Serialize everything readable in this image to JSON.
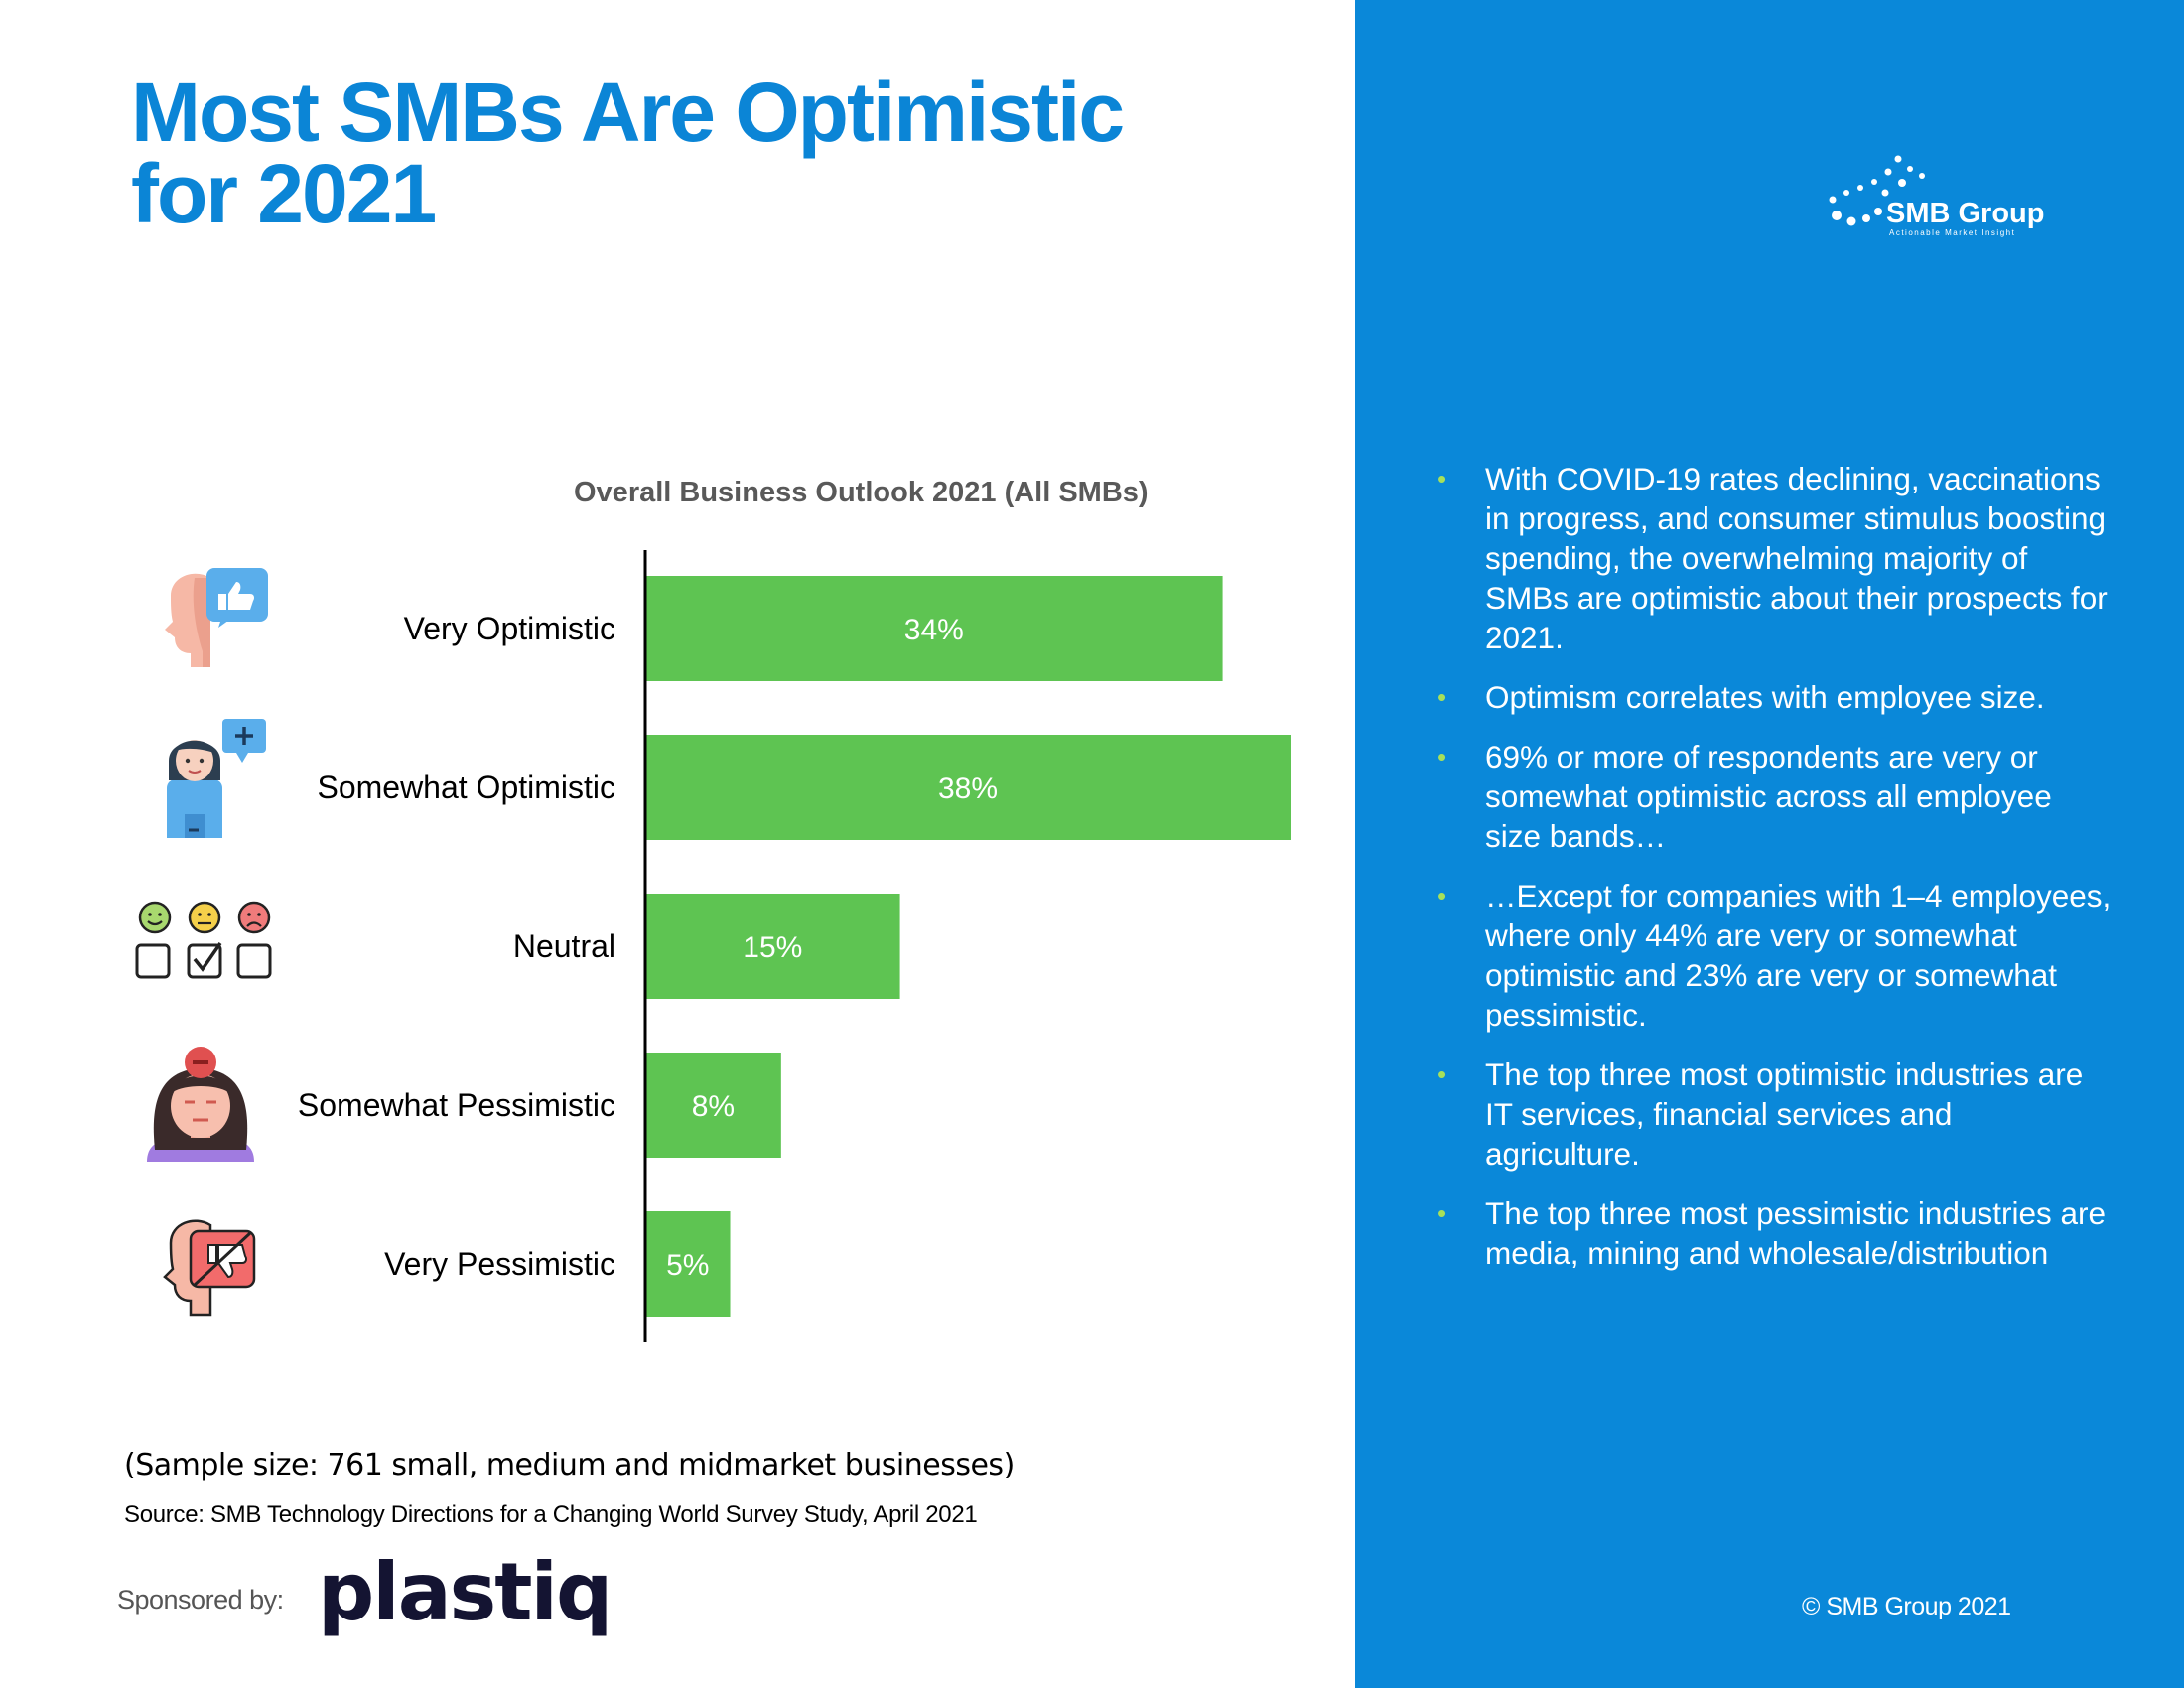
{
  "slide": {
    "title_line1": "Most SMBs Are Optimistic",
    "title_line2": "for 2021"
  },
  "logo": {
    "name": "SMB Group",
    "tagline": "Actionable Market Insight"
  },
  "colors": {
    "accent": "#0b85d6",
    "panel": "#0a88d9",
    "bar": "#5ec452",
    "bullet": "#a7e05a"
  },
  "icons": [
    "thumbs-up-head-icon",
    "woman-feedback-icon",
    "emoji-checklist-icon",
    "worried-woman-icon",
    "thumbs-down-head-icon"
  ],
  "chart_data": {
    "type": "bar",
    "orientation": "horizontal",
    "title": "Overall Business Outlook 2021 (All SMBs)",
    "categories": [
      "Very Optimistic",
      "Somewhat Optimistic",
      "Neutral",
      "Somewhat Pessimistic",
      "Very Pessimistic"
    ],
    "values": [
      34,
      38,
      15,
      8,
      5
    ],
    "data_labels": [
      "34%",
      "38%",
      "15%",
      "8%",
      "5%"
    ],
    "unit": "%",
    "xlim": [
      0,
      38
    ],
    "grid": false,
    "legend": "none"
  },
  "bullets": [
    "With COVID-19 rates declining, vaccinations in progress, and consumer stimulus boosting spending, the overwhelming majority of SMBs are optimistic about their prospects for 2021.",
    "Optimism correlates with employee size.",
    "69% or more of respondents are very or somewhat optimistic across all employee size bands…",
    "…Except for companies with 1–4 employees, where only 44% are very or somewhat optimistic and 23% are very or somewhat pessimistic.",
    "The top three most optimistic industries are IT services, financial services and agriculture.",
    "The top three most pessimistic industries are media, mining and wholesale/distribution"
  ],
  "bullet_marker": "•",
  "footer": {
    "sample_note": "(Sample size: 761 small, medium and midmarket businesses)",
    "source": "Source: SMB Technology Directions for a Changing World Survey Study, April 2021",
    "sponsored_by": "Sponsored by:",
    "sponsor": "plastiq",
    "copyright": "© SMB Group 2021"
  }
}
